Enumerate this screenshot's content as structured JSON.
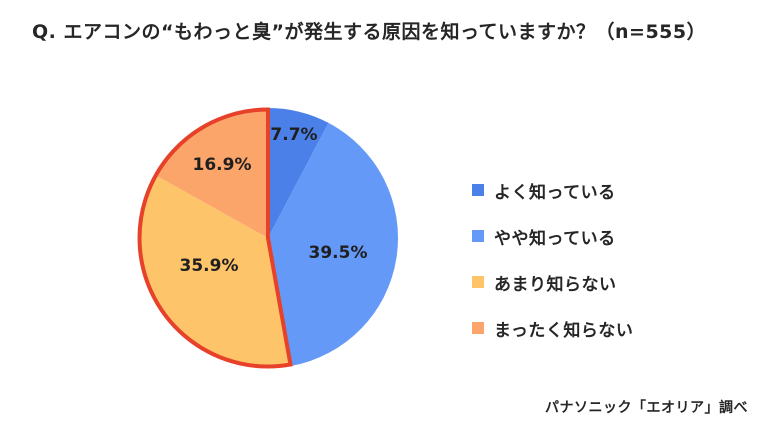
{
  "title": "Q. エアコンの“もわっと臭”が発生する原因を知っていますか？（n=555）",
  "source": "パナソニック「エオリア」調べ",
  "chart_data": {
    "type": "pie",
    "title": "Q. エアコンの“もわっと臭”が発生する原因を知っていますか？（n=555）",
    "n": 555,
    "categories": [
      "よく知っている",
      "やや知っている",
      "あまり知らない",
      "まったく知らない"
    ],
    "values": [
      7.7,
      39.5,
      35.9,
      16.9
    ],
    "labels": [
      "7.7%",
      "39.5%",
      "35.9%",
      "16.9%"
    ],
    "colors": [
      "#4a80e8",
      "#6499f7",
      "#fdc46a",
      "#fca56b"
    ],
    "start_angle": "12 o'clock",
    "direction": "clockwise",
    "highlight": {
      "categories": [
        "あまり知らない",
        "まったく知らない"
      ],
      "outline_color": "#e8412a"
    },
    "legend_position": "right",
    "annotation": "パナソニック「エオリア」調べ"
  },
  "legend": [
    {
      "label": "よく知っている",
      "color": "#4a80e8"
    },
    {
      "label": "やや知っている",
      "color": "#6499f7"
    },
    {
      "label": "あまり知らない",
      "color": "#fdc46a"
    },
    {
      "label": "まったく知らない",
      "color": "#fca56b"
    }
  ]
}
